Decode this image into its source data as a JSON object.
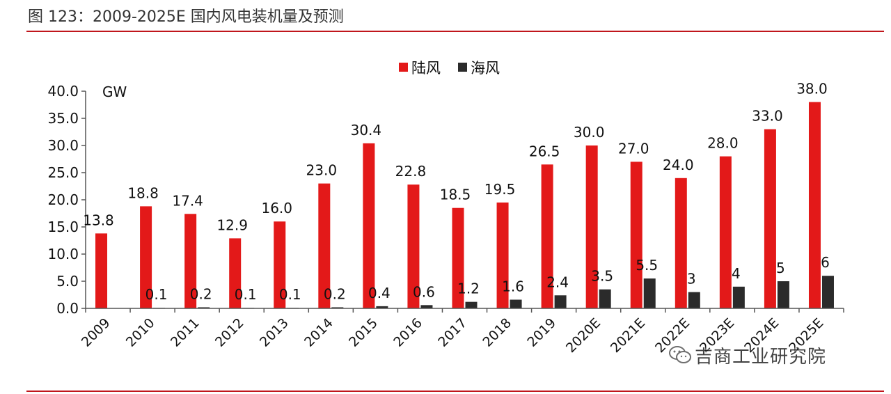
{
  "header": {
    "title": "图 123：2009-2025E 国内风电装机量及预测"
  },
  "colors": {
    "rule": "#c0161c",
    "onshore": "#e31919",
    "offshore": "#2b2b2b",
    "axis": "#555555"
  },
  "watermark": {
    "text": "吉商工业研究院",
    "icon": "wechat-icon"
  },
  "chart_data": {
    "type": "bar",
    "title": "",
    "xlabel": "",
    "ylabel": "GW",
    "ylim": [
      0,
      40
    ],
    "yticks": [
      "0.0",
      "5.0",
      "10.0",
      "15.0",
      "20.0",
      "25.0",
      "30.0",
      "35.0",
      "40.0"
    ],
    "grid": false,
    "legend_position": "top-center",
    "categories": [
      "2009",
      "2010",
      "2011",
      "2012",
      "2013",
      "2014",
      "2015",
      "2016",
      "2017",
      "2018",
      "2019",
      "2020E",
      "2021E",
      "2022E",
      "2023E",
      "2024E",
      "2025E"
    ],
    "series": [
      {
        "name": "陆风",
        "color": "#e31919",
        "values": [
          13.8,
          18.8,
          17.4,
          12.9,
          16.0,
          23.0,
          30.4,
          22.8,
          18.5,
          19.5,
          26.5,
          30.0,
          27.0,
          24.0,
          28.0,
          33.0,
          38.0
        ],
        "labels": [
          "13.8",
          "18.8",
          "17.4",
          "12.9",
          "16.0",
          "23.0",
          "30.4",
          "22.8",
          "18.5",
          "19.5",
          "26.5",
          "30.0",
          "27.0",
          "24.0",
          "28.0",
          "33.0",
          "38.0"
        ]
      },
      {
        "name": "海风",
        "color": "#2b2b2b",
        "values": [
          0,
          0.1,
          0.2,
          0.1,
          0.1,
          0.2,
          0.4,
          0.6,
          1.2,
          1.6,
          2.4,
          3.5,
          5.5,
          3,
          4,
          5,
          6
        ],
        "labels": [
          "",
          "0.1",
          "0.2",
          "0.1",
          "0.1",
          "0.2",
          "0.4",
          "0.6",
          "1.2",
          "1.6",
          "2.4",
          "3.5",
          "5.5",
          "3",
          "4",
          "5",
          "6"
        ]
      }
    ]
  }
}
